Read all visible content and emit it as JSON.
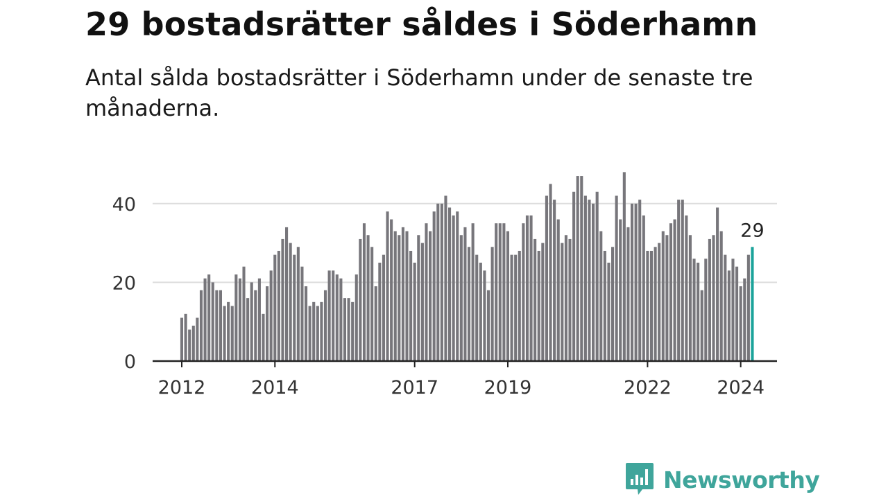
{
  "header": {
    "title": "29 bostadsrätter såldes i Söderhamn",
    "subtitle": "Antal sålda bostadsrätter i Söderhamn under de senaste tre månaderna."
  },
  "brand": {
    "name": "Newsworthy",
    "color": "#3fa59b",
    "icon": "newsworthy-logo-icon"
  },
  "chart_data": {
    "type": "bar",
    "ylim": [
      0,
      50
    ],
    "y_ticks": [
      0,
      20,
      40
    ],
    "x_tick_labels": [
      "2012",
      "2014",
      "2017",
      "2019",
      "2022",
      "2024"
    ],
    "bar_color": "#77767b",
    "highlight_color": "#1ba39a",
    "highlight_label": "29",
    "grid": true,
    "values": [
      11,
      12,
      8,
      9,
      11,
      18,
      21,
      22,
      20,
      18,
      18,
      14,
      15,
      14,
      22,
      21,
      24,
      16,
      20,
      18,
      21,
      12,
      19,
      23,
      27,
      28,
      31,
      34,
      30,
      27,
      29,
      24,
      19,
      14,
      15,
      14,
      15,
      18,
      23,
      23,
      22,
      21,
      16,
      16,
      15,
      22,
      31,
      35,
      32,
      29,
      19,
      25,
      27,
      38,
      36,
      33,
      32,
      34,
      33,
      28,
      25,
      32,
      30,
      35,
      33,
      38,
      40,
      40,
      42,
      39,
      37,
      38,
      32,
      34,
      29,
      35,
      27,
      25,
      23,
      18,
      29,
      35,
      35,
      35,
      33,
      27,
      27,
      28,
      35,
      37,
      37,
      31,
      28,
      30,
      42,
      45,
      41,
      36,
      30,
      32,
      31,
      43,
      47,
      47,
      42,
      41,
      40,
      43,
      33,
      28,
      25,
      29,
      42,
      36,
      48,
      34,
      40,
      40,
      41,
      37,
      28,
      28,
      29,
      30,
      33,
      32,
      35,
      36,
      41,
      41,
      37,
      32,
      26,
      25,
      18,
      26,
      31,
      32,
      39,
      33,
      27,
      23,
      26,
      24,
      19,
      21,
      27,
      29
    ]
  }
}
